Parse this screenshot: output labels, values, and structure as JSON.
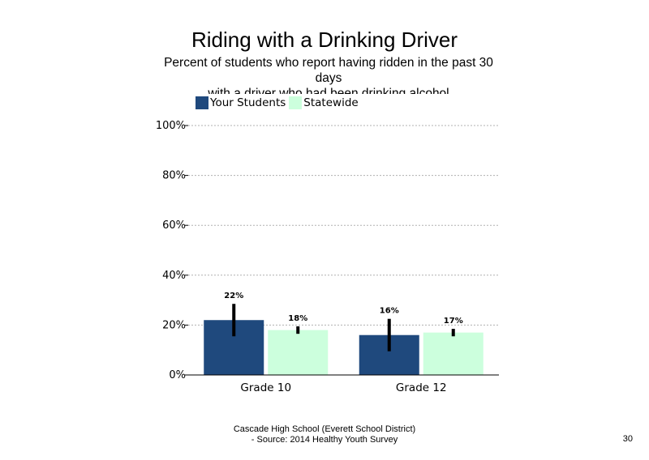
{
  "title": "Riding with a Drinking Driver",
  "subtitle_lines": [
    "Percent of students  who report having ridden in the past 30",
    "days",
    "with a driver who had been drinking alcohol"
  ],
  "footer_lines": [
    "Cascade High School (Everett School District)",
    "- Source: 2014 Healthy  Youth Survey"
  ],
  "page_number": "30",
  "colors": {
    "your_students": "#1f497d",
    "statewide": "#ccffdd",
    "error_bar": "#000000",
    "grid": "#b0b0b0",
    "axis": "#000000"
  },
  "chart_data": {
    "type": "bar",
    "categories": [
      "Grade 10",
      "Grade 12"
    ],
    "series": [
      {
        "name": "Your Students",
        "values": [
          22,
          16
        ],
        "labels": [
          "22%",
          "16%"
        ],
        "error_low": [
          15.5,
          9.5
        ],
        "error_high": [
          28.5,
          22.5
        ]
      },
      {
        "name": "Statewide",
        "values": [
          18,
          17
        ],
        "labels": [
          "18%",
          "17%"
        ],
        "error_low": [
          16.5,
          15.5
        ],
        "error_high": [
          19.5,
          18.5
        ]
      }
    ],
    "ylim": [
      0,
      100
    ],
    "yticks": [
      0,
      20,
      40,
      60,
      80,
      100
    ],
    "ytick_labels": [
      "0%",
      "20%",
      "40%",
      "60%",
      "80%",
      "100%"
    ],
    "grid": true,
    "legend_position": "top-left",
    "error_bars": true
  }
}
